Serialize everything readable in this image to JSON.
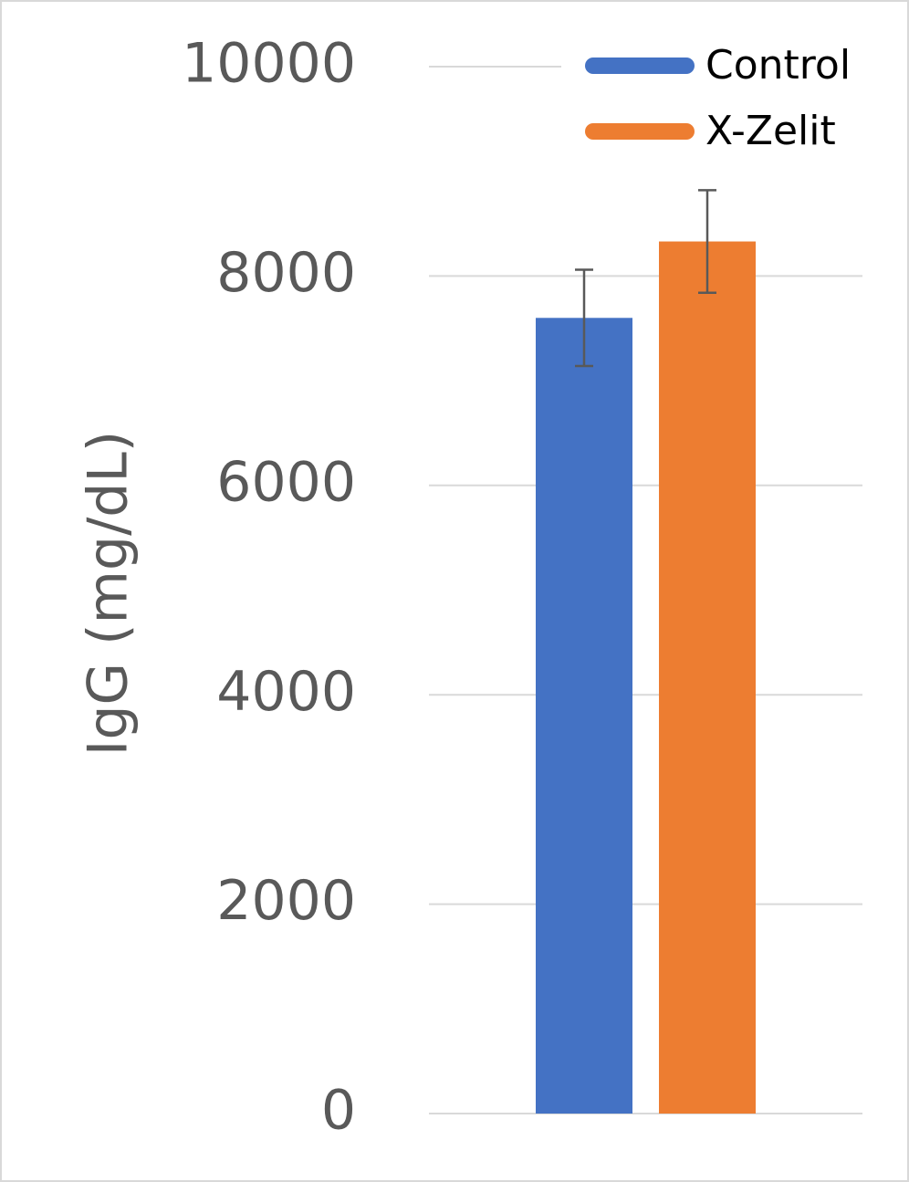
{
  "chart_data": {
    "type": "bar",
    "y_label": "IgG (mg/dL)",
    "categories": [
      null
    ],
    "series": [
      {
        "name": "Control",
        "color": "#4472c4",
        "values": [
          7600
        ],
        "errors": [
          460
        ]
      },
      {
        "name": "X-Zelit",
        "color": "#ed7d31",
        "values": [
          8330
        ],
        "errors": [
          490
        ]
      }
    ],
    "ylim": [
      0,
      10000
    ],
    "yticks": [
      0,
      2000,
      4000,
      6000,
      8000,
      10000
    ],
    "grid": true,
    "legend": "top-right"
  }
}
